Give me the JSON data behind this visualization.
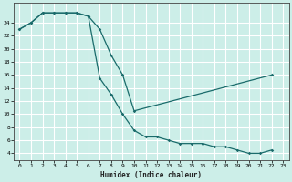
{
  "title": "",
  "xlabel": "Humidex (Indice chaleur)",
  "bg_color": "#cceee8",
  "grid_color": "#ffffff",
  "line_color": "#1a6b6b",
  "xlim": [
    -0.5,
    23.5
  ],
  "ylim": [
    3,
    27
  ],
  "xticks": [
    0,
    1,
    2,
    3,
    4,
    5,
    6,
    7,
    8,
    9,
    10,
    11,
    12,
    13,
    14,
    15,
    16,
    17,
    18,
    19,
    20,
    21,
    22,
    23
  ],
  "yticks": [
    4,
    6,
    8,
    10,
    12,
    14,
    16,
    18,
    20,
    22,
    24
  ],
  "curve1_x": [
    0,
    1,
    2,
    3,
    4,
    5,
    6,
    7,
    8,
    9,
    10,
    22
  ],
  "curve1_y": [
    23,
    24,
    25.5,
    25.5,
    25.5,
    25.5,
    25,
    23,
    19,
    16,
    10.5,
    16
  ],
  "curve2_x": [
    0,
    1,
    2,
    3,
    4,
    5,
    6,
    7,
    8,
    9,
    10,
    11,
    12,
    13,
    14,
    15,
    16,
    17,
    18,
    19,
    20,
    21,
    22
  ],
  "curve2_y": [
    23,
    24,
    25.5,
    25.5,
    25.5,
    25.5,
    25,
    15.5,
    13,
    10,
    7.5,
    6.5,
    6.5,
    6,
    5.5,
    5.5,
    5.5,
    5,
    5,
    4.5,
    4,
    4,
    4.5
  ]
}
